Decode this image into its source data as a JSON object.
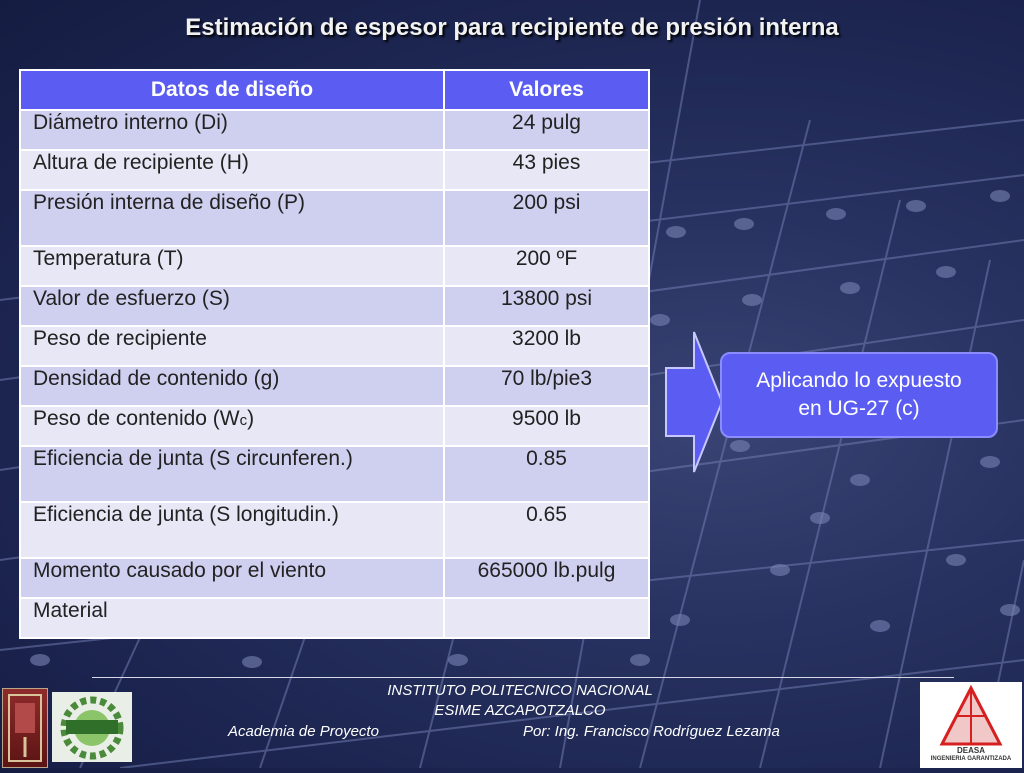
{
  "slide": {
    "title": "Estimación de espesor para recipiente de presión interna"
  },
  "table": {
    "headers": [
      "Datos de diseño",
      "Valores"
    ],
    "rows": [
      {
        "label": "Diámetro interno  (Di)",
        "value": "24 pulg"
      },
      {
        "label": "Altura de recipiente (H)",
        "value": "43 pies"
      },
      {
        "label": "Presión interna de diseño  (P)",
        "value": "200 psi"
      },
      {
        "label": "Temperatura   (T)",
        "value": "200 ºF"
      },
      {
        "label": "Valor de esfuerzo (S)",
        "value": "13800 psi"
      },
      {
        "label": "Peso de recipiente",
        "value": "3200 lb"
      },
      {
        "label": "Densidad de contenido (g)",
        "value": "70 lb/pie3"
      },
      {
        "label": "Peso de contenido (W",
        "label_sub": "c",
        "label_end": ")",
        "value": "9500 lb"
      },
      {
        "label": "Eficiencia de junta (S circunferen.)",
        "value": "0.85"
      },
      {
        "label": "Eficiencia de junta (S longitudin.)",
        "value": "0.65"
      },
      {
        "label": "Momento causado por el viento",
        "value": "665000 lb.pulg"
      },
      {
        "label": "Material",
        "value": ""
      }
    ]
  },
  "callout": {
    "line1": "Aplicando lo expuesto",
    "line2": "en UG-27 (c)"
  },
  "footer": {
    "institution": "INSTITUTO POLITECNICO NACIONAL",
    "school": "ESIME AZCAPOTZALCO",
    "academy": "Academia de Proyecto",
    "author": "Por: Ing. Francisco Rodríguez Lezama"
  },
  "logos": {
    "left1": "ipn-logo",
    "left2": "esime-logo",
    "right": {
      "name": "deasa-logo",
      "text1": "DEASA",
      "text2": "INGENIERIA GARANTIZADA"
    }
  },
  "colors": {
    "header_bg": "#5b5df2",
    "row_a": "#cfd0f0",
    "row_b": "#e7e7f6",
    "callout_bg": "#5b5df2"
  }
}
